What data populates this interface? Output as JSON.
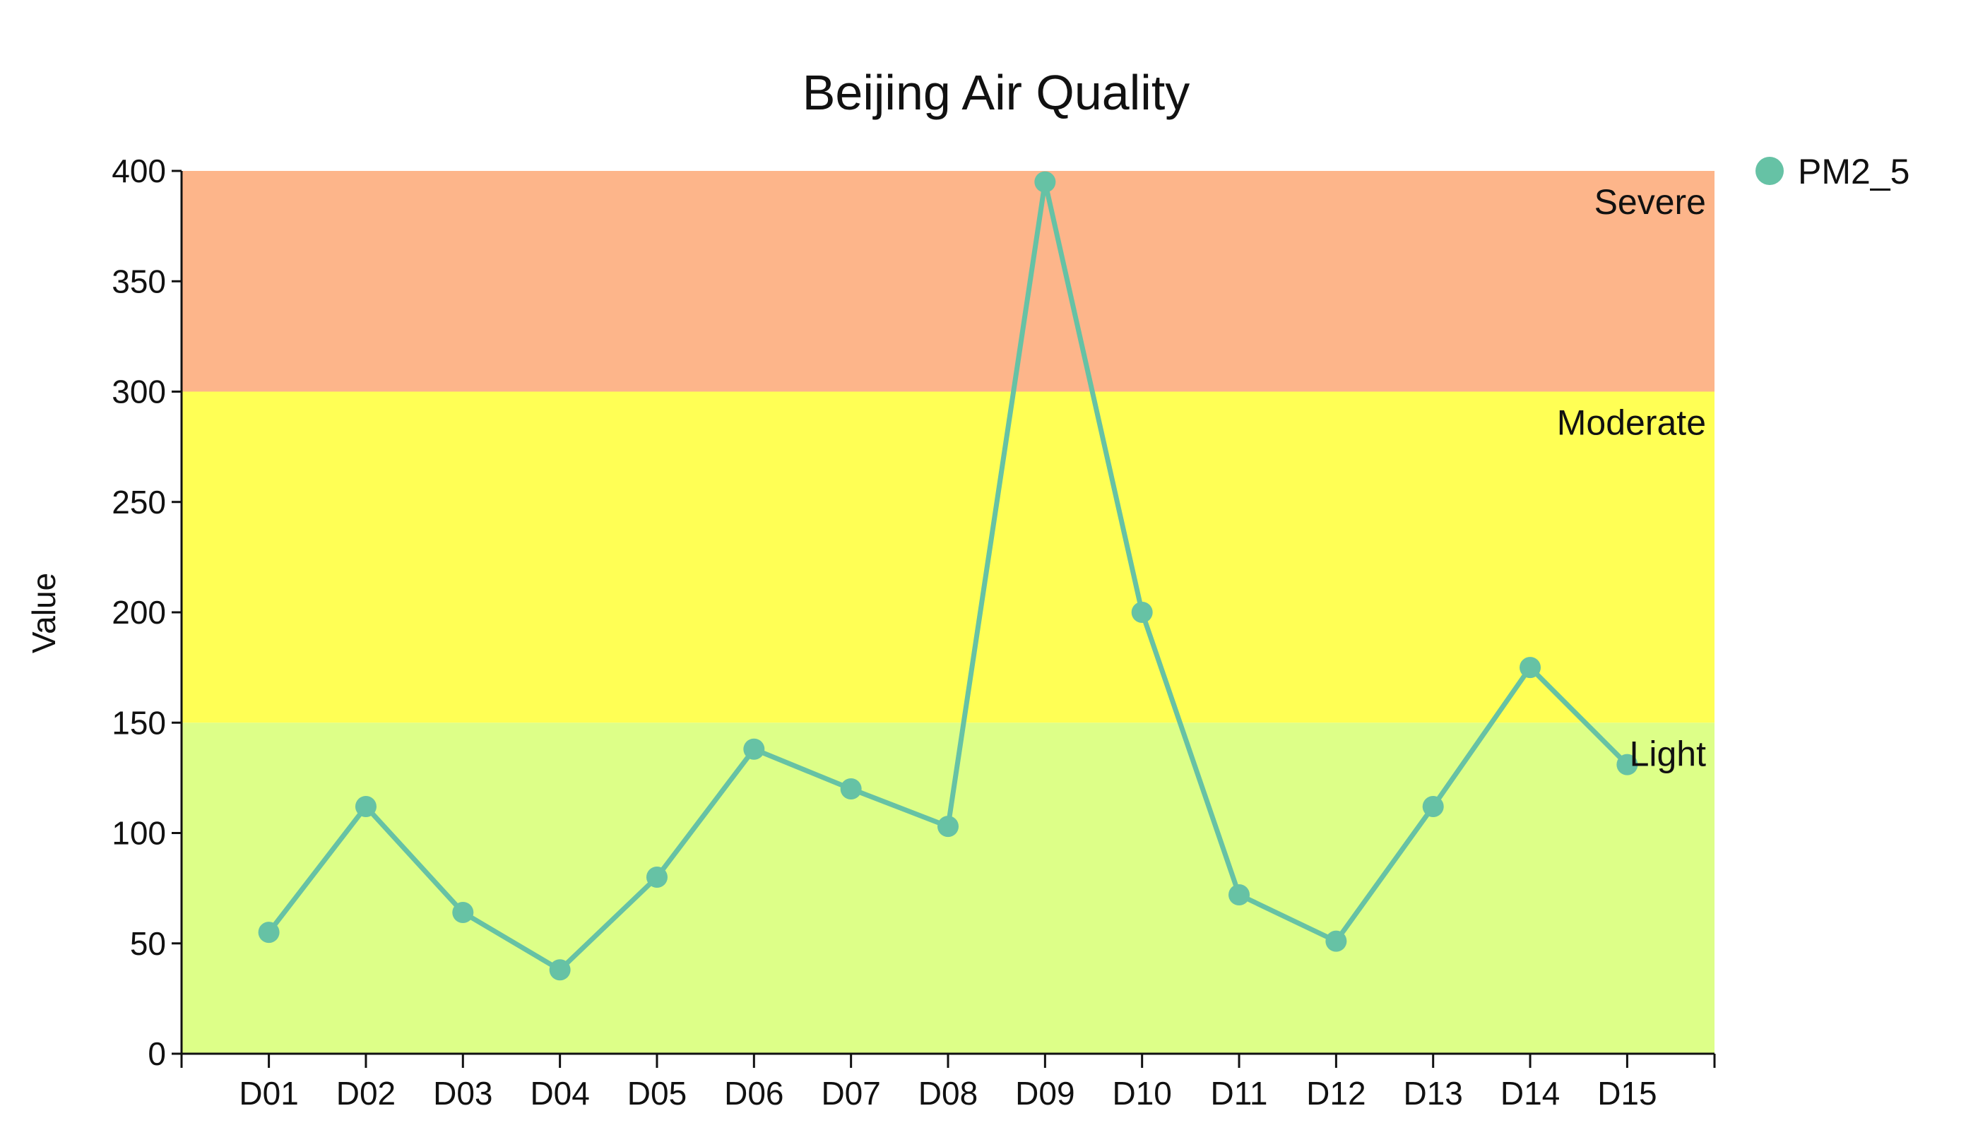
{
  "chart_data": {
    "type": "line",
    "title": "Beijing Air Quality",
    "xlabel": "",
    "ylabel": "Value",
    "categories": [
      "D01",
      "D02",
      "D03",
      "D04",
      "D05",
      "D06",
      "D07",
      "D08",
      "D09",
      "D10",
      "D11",
      "D12",
      "D13",
      "D14",
      "D15"
    ],
    "series": [
      {
        "name": "PM2_5",
        "color": "#66c2a5",
        "values": [
          55,
          112,
          64,
          38,
          80,
          138,
          120,
          103,
          395,
          200,
          72,
          51,
          112,
          175,
          131
        ]
      }
    ],
    "ylim": [
      0,
      400
    ],
    "yticks": [
      0,
      50,
      100,
      150,
      200,
      250,
      300,
      350,
      400
    ],
    "bands": [
      {
        "label": "Light",
        "from": 0,
        "to": 150,
        "color": "#ddff88"
      },
      {
        "label": "Moderate",
        "from": 150,
        "to": 300,
        "color": "#ffff55"
      },
      {
        "label": "Severe",
        "from": 300,
        "to": 400,
        "color": "#fdb58a"
      }
    ],
    "legend": {
      "position": "top-right",
      "entries": [
        "PM2_5"
      ]
    },
    "grid": false
  }
}
